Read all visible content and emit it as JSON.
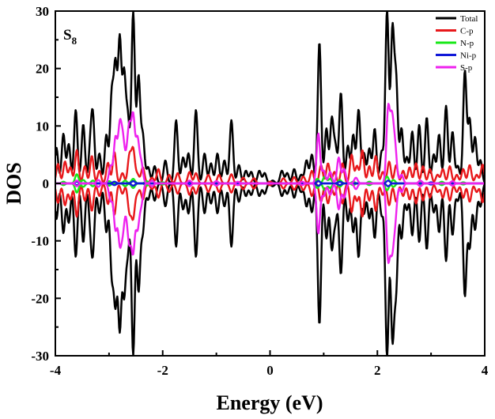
{
  "chart_data": {
    "type": "line",
    "title": "",
    "panel_label": {
      "main": "S",
      "subscript": "8"
    },
    "xlabel": "Energy (eV)",
    "ylabel": "DOS",
    "xlim": [
      -4,
      4
    ],
    "ylim": [
      -30,
      30
    ],
    "xticks": [
      -4,
      -2,
      0,
      2,
      4
    ],
    "yticks": [
      -30,
      -20,
      -10,
      0,
      10,
      20,
      30
    ],
    "grid": false,
    "legend_position": "top-right",
    "mirrored_about_zero": true,
    "series": [
      {
        "name": "Total",
        "color": "#000000",
        "peaks": [
          [
            -3.98,
            6.2
          ],
          [
            -3.85,
            8.6
          ],
          [
            -3.75,
            6.8
          ],
          [
            -3.62,
            12.8
          ],
          [
            -3.48,
            10.3
          ],
          [
            -3.35,
            5.6
          ],
          [
            -3.3,
            11.0
          ],
          [
            -3.18,
            5.2
          ],
          [
            -3.05,
            8.4
          ],
          [
            -2.95,
            15.0
          ],
          [
            -2.88,
            19.5
          ],
          [
            -2.8,
            24.4
          ],
          [
            -2.72,
            18.2
          ],
          [
            -2.65,
            11.0
          ],
          [
            -2.55,
            29.7
          ],
          [
            -2.45,
            18.4
          ],
          [
            -2.37,
            8.2
          ],
          [
            -2.27,
            2.8
          ],
          [
            -2.15,
            3.0
          ],
          [
            -1.95,
            4.0
          ],
          [
            -1.75,
            11.0
          ],
          [
            -1.62,
            4.5
          ],
          [
            -1.52,
            5.2
          ],
          [
            -1.38,
            12.8
          ],
          [
            -1.22,
            5.2
          ],
          [
            -1.1,
            3.5
          ],
          [
            -0.98,
            5.2
          ],
          [
            -0.85,
            4.0
          ],
          [
            -0.72,
            11.0
          ],
          [
            -0.58,
            3.2
          ],
          [
            -0.45,
            2.2
          ],
          [
            -0.35,
            2.0
          ],
          [
            -0.2,
            2.2
          ],
          [
            -0.1,
            1.8
          ],
          [
            0.05,
            0.5
          ],
          [
            0.22,
            2.2
          ],
          [
            0.32,
            1.8
          ],
          [
            0.45,
            2.5
          ],
          [
            0.58,
            1.5
          ],
          [
            0.68,
            4.0
          ],
          [
            0.78,
            5.0
          ],
          [
            0.92,
            24.6
          ],
          [
            1.05,
            9.5
          ],
          [
            1.15,
            11.0
          ],
          [
            1.22,
            6.0
          ],
          [
            1.32,
            15.8
          ],
          [
            1.45,
            6.5
          ],
          [
            1.55,
            8.4
          ],
          [
            1.65,
            12.8
          ],
          [
            1.75,
            5.2
          ],
          [
            1.85,
            6.0
          ],
          [
            1.95,
            9.5
          ],
          [
            2.08,
            5.5
          ],
          [
            2.18,
            30.0
          ],
          [
            2.28,
            26.0
          ],
          [
            2.35,
            17.2
          ],
          [
            2.45,
            9.5
          ],
          [
            2.55,
            4.5
          ],
          [
            2.65,
            9.0
          ],
          [
            2.78,
            10.2
          ],
          [
            2.92,
            11.5
          ],
          [
            3.05,
            5.0
          ],
          [
            3.15,
            8.5
          ],
          [
            3.28,
            13.5
          ],
          [
            3.4,
            9.0
          ],
          [
            3.5,
            3.0
          ],
          [
            3.63,
            19.5
          ],
          [
            3.72,
            11.0
          ],
          [
            3.82,
            8.0
          ],
          [
            3.92,
            4.0
          ]
        ]
      },
      {
        "name": "C-p",
        "color": "#e8181b",
        "peaks": [
          [
            -3.95,
            3.4
          ],
          [
            -3.82,
            3.8
          ],
          [
            -3.72,
            2.8
          ],
          [
            -3.6,
            5.8
          ],
          [
            -3.45,
            3.0
          ],
          [
            -3.32,
            4.8
          ],
          [
            -3.18,
            2.2
          ],
          [
            -3.02,
            3.6
          ],
          [
            -2.9,
            5.5
          ],
          [
            -2.75,
            1.8
          ],
          [
            -2.62,
            4.8
          ],
          [
            -2.55,
            5.8
          ],
          [
            -2.47,
            1.5
          ],
          [
            -2.37,
            2.8
          ],
          [
            -2.2,
            1.0
          ],
          [
            -2.08,
            2.5
          ],
          [
            -1.88,
            1.5
          ],
          [
            -1.72,
            1.8
          ],
          [
            -1.5,
            2.0
          ],
          [
            -1.38,
            1.8
          ],
          [
            -1.15,
            1.5
          ],
          [
            -0.95,
            1.5
          ],
          [
            -0.72,
            1.6
          ],
          [
            -0.5,
            1.0
          ],
          [
            -0.3,
            0.9
          ],
          [
            0.0,
            0.3
          ],
          [
            0.25,
            0.9
          ],
          [
            0.45,
            1.1
          ],
          [
            0.62,
            1.2
          ],
          [
            0.78,
            2.2
          ],
          [
            0.95,
            3.2
          ],
          [
            1.08,
            3.5
          ],
          [
            1.2,
            2.0
          ],
          [
            1.35,
            3.5
          ],
          [
            1.52,
            5.0
          ],
          [
            1.62,
            3.0
          ],
          [
            1.72,
            5.8
          ],
          [
            1.85,
            3.0
          ],
          [
            1.97,
            4.8
          ],
          [
            2.1,
            2.0
          ],
          [
            2.22,
            3.8
          ],
          [
            2.35,
            3.2
          ],
          [
            2.48,
            2.2
          ],
          [
            2.6,
            2.8
          ],
          [
            2.72,
            3.5
          ],
          [
            2.85,
            3.0
          ],
          [
            2.98,
            2.5
          ],
          [
            3.12,
            1.5
          ],
          [
            3.22,
            2.5
          ],
          [
            3.35,
            3.0
          ],
          [
            3.48,
            1.5
          ],
          [
            3.6,
            2.5
          ],
          [
            3.72,
            3.2
          ],
          [
            3.85,
            1.5
          ],
          [
            3.96,
            3.3
          ]
        ]
      },
      {
        "name": "N-p",
        "color": "#18e818",
        "peaks": [
          [
            -3.85,
            0.3
          ],
          [
            -3.6,
            1.6
          ],
          [
            -3.48,
            0.6
          ],
          [
            -3.3,
            0.5
          ],
          [
            -3.0,
            0.4
          ],
          [
            -2.7,
            0.5
          ],
          [
            -2.55,
            0.8
          ],
          [
            -2.3,
            0.4
          ],
          [
            -2.0,
            0.2
          ],
          [
            -1.5,
            0.2
          ],
          [
            -1.0,
            0.1
          ],
          [
            0.88,
            0.8
          ],
          [
            1.02,
            1.2
          ],
          [
            1.12,
            0.8
          ],
          [
            1.3,
            0.6
          ],
          [
            1.55,
            0.3
          ],
          [
            1.85,
            0.3
          ],
          [
            2.18,
            1.2
          ],
          [
            2.3,
            0.6
          ],
          [
            2.8,
            0.4
          ],
          [
            3.2,
            0.3
          ],
          [
            3.6,
            0.2
          ]
        ]
      },
      {
        "name": "Ni-p",
        "color": "#1018d8",
        "peaks": [
          [
            -3.6,
            0.3
          ],
          [
            -2.9,
            0.3
          ],
          [
            -2.55,
            0.4
          ],
          [
            -1.5,
            0.2
          ],
          [
            0.9,
            0.4
          ],
          [
            1.3,
            0.3
          ],
          [
            2.2,
            0.5
          ],
          [
            3.0,
            0.2
          ]
        ]
      },
      {
        "name": "S-p",
        "color": "#ee22ee",
        "peaks": [
          [
            -3.6,
            0.5
          ],
          [
            -3.2,
            0.6
          ],
          [
            -2.97,
            3.0
          ],
          [
            -2.88,
            7.8
          ],
          [
            -2.8,
            9.5
          ],
          [
            -2.74,
            7.0
          ],
          [
            -2.67,
            3.5
          ],
          [
            -2.62,
            8.8
          ],
          [
            -2.55,
            11.3
          ],
          [
            -2.47,
            7.5
          ],
          [
            -2.4,
            3.5
          ],
          [
            -2.2,
            0.5
          ],
          [
            -1.5,
            0.5
          ],
          [
            -1.0,
            0.4
          ],
          [
            -0.6,
            0.3
          ],
          [
            0.6,
            0.3
          ],
          [
            0.9,
            8.7
          ],
          [
            1.0,
            2.2
          ],
          [
            1.12,
            2.0
          ],
          [
            1.28,
            4.5
          ],
          [
            1.38,
            2.5
          ],
          [
            1.6,
            1.0
          ],
          [
            2.2,
            12.7
          ],
          [
            2.27,
            10.5
          ],
          [
            2.33,
            6.0
          ],
          [
            2.45,
            1.5
          ],
          [
            2.8,
            0.5
          ],
          [
            3.4,
            0.4
          ]
        ]
      }
    ]
  }
}
